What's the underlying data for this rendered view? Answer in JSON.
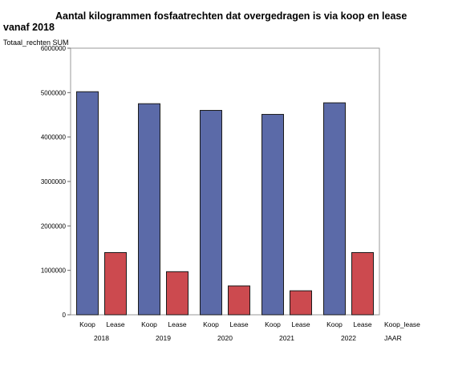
{
  "chart_data": {
    "type": "bar",
    "title_line1": "Aantal kilogrammen fosfaatrechten dat overgedragen is via koop en lease",
    "title_line2": "vanaf 2018",
    "ylabel": "Totaal_rechten SUM",
    "ylim": [
      0,
      6000000
    ],
    "yticks": [
      0,
      1000000,
      2000000,
      3000000,
      4000000,
      5000000,
      6000000
    ],
    "ytick_labels": [
      "0",
      "1000000",
      "2000000",
      "3000000",
      "4000000",
      "5000000",
      "6000000"
    ],
    "grid": false,
    "groups": [
      "2018",
      "2019",
      "2020",
      "2021",
      "2022"
    ],
    "group_axis_label": "JAAR",
    "sub_categories": [
      "Koop",
      "Lease"
    ],
    "sub_axis_label": "Koop_lease",
    "series": [
      {
        "name": "Koop",
        "color": "#5b6aa8",
        "values": [
          5020000,
          4750000,
          4600000,
          4510000,
          4770000
        ]
      },
      {
        "name": "Lease",
        "color": "#cc4a4f",
        "values": [
          1400000,
          970000,
          650000,
          540000,
          1400000
        ]
      }
    ]
  }
}
